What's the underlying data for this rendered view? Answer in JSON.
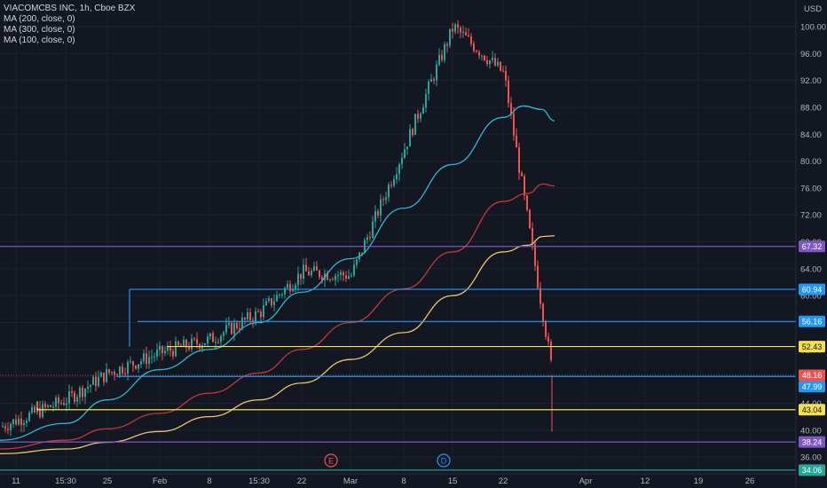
{
  "legend": {
    "symbol": "VIACOMCBS INC, 1h, Cboe BZX",
    "indicators": [
      "MA (200, close, 0)",
      "MA (300, close, 0)",
      "MA (100, close, 0)"
    ]
  },
  "currency": "USD",
  "colors": {
    "background": "#131722",
    "grid": "#1e2230",
    "up": "#26a69a",
    "down": "#ef5350",
    "ma100": "#2eb8d0",
    "ma200": "#c0393b",
    "ma300": "#e9c46a"
  },
  "chart_data": {
    "type": "line",
    "title": "VIACOMCBS INC, 1h, Cboe BZX",
    "ylim": [
      33.6,
      102.5
    ],
    "x_tick_labels": [
      "11",
      "15:30",
      "25",
      "Feb",
      "8",
      "15:30",
      "22",
      "Mar",
      "8",
      "15",
      "22",
      "Apr",
      "12",
      "19",
      "26"
    ],
    "y_tick_labels": [
      "100.00",
      "96.00",
      "92.00",
      "88.00",
      "84.00",
      "80.00",
      "76.00",
      "72.00",
      "68.00",
      "64.00",
      "60.00",
      "56.00",
      "52.00",
      "48.00",
      "44.00",
      "40.00",
      "36.00"
    ],
    "x": [
      "11",
      "15:30",
      "25",
      "Feb",
      "8",
      "15:30",
      "22",
      "Mar",
      "8",
      "15",
      "22",
      "Apr"
    ],
    "series": [
      {
        "name": "VIACOMCBS INC",
        "values": [
          40.5,
          44.5,
          48.5,
          51.5,
          53.5,
          57.5,
          63.5,
          63.0,
          82.0,
          100.0,
          93.0,
          48.2
        ]
      },
      {
        "name": "MA (100, close, 0)",
        "values": [
          38.5,
          41.0,
          44.5,
          49.0,
          52.0,
          56.0,
          60.5,
          65.5,
          73.0,
          79.5,
          86.5,
          null
        ]
      },
      {
        "name": "MA (200, close, 0)",
        "values": [
          37.2,
          38.5,
          40.2,
          42.5,
          45.5,
          48.5,
          52.0,
          56.0,
          61.0,
          66.5,
          74.0,
          null
        ]
      },
      {
        "name": "MA (300, close, 0)",
        "values": [
          36.5,
          37.2,
          38.2,
          39.8,
          42.0,
          44.5,
          47.0,
          50.5,
          54.5,
          60.0,
          66.5,
          null
        ]
      }
    ],
    "horizontal_levels": [
      {
        "label": "67.32",
        "value": 67.32,
        "color": "#7e57c2"
      },
      {
        "label": "60.94",
        "value": 60.94,
        "color": "#2196f3"
      },
      {
        "label": "56.16",
        "value": 56.16,
        "color": "#2196f3"
      },
      {
        "label": "52.43",
        "value": 52.43,
        "color": "#f4e04d"
      },
      {
        "label": "47.99",
        "value": 47.99,
        "color": "#2196f3"
      },
      {
        "label": "43.04",
        "value": 43.04,
        "color": "#f4e04d"
      },
      {
        "label": "38.24",
        "value": 38.24,
        "color": "#7e57c2"
      },
      {
        "label": "34.06",
        "value": 34.06,
        "color": "#26a69a"
      }
    ],
    "last_price": {
      "label": "48.16",
      "value": 48.16,
      "color": "#ef5350"
    },
    "event_markers": [
      {
        "label": "E",
        "color": "#ef5350",
        "x": "Mar"
      },
      {
        "label": "D",
        "color": "#2196f3",
        "x": "15"
      }
    ],
    "grid": true,
    "legend_position": "top-left"
  }
}
